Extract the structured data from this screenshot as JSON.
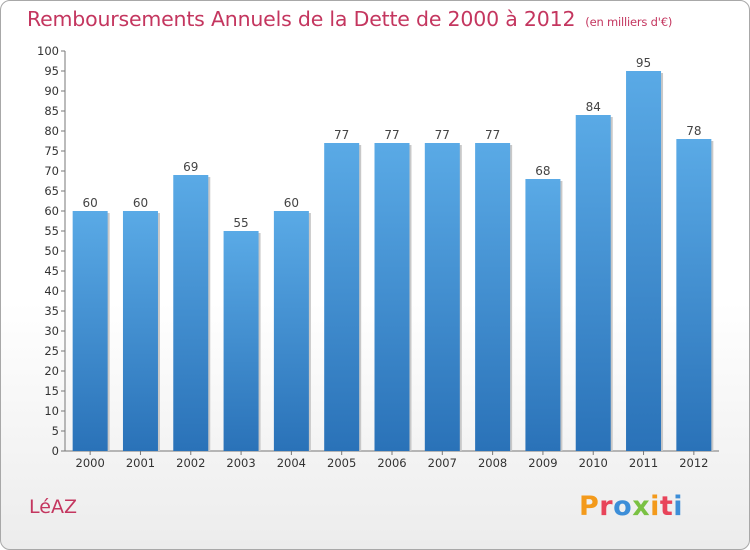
{
  "header": {
    "title": "Remboursements Annuels de la Dette de 2000 à 2012",
    "subtitle": "(en milliers d'€)"
  },
  "footer": {
    "commune": "LéAZ",
    "logo": "Proxiti",
    "logo_colors": [
      "#f39a1b",
      "#e8445a",
      "#3d8ed8",
      "#7ac143",
      "#f39a1b",
      "#e8445a",
      "#3d8ed8"
    ]
  },
  "chart_data": {
    "type": "bar",
    "title": "Remboursements Annuels de la Dette de 2000 à 2012",
    "xlabel": "",
    "ylabel": "",
    "categories": [
      "2000",
      "2001",
      "2002",
      "2003",
      "2004",
      "2005",
      "2006",
      "2007",
      "2008",
      "2009",
      "2010",
      "2011",
      "2012"
    ],
    "values": [
      60,
      60,
      69,
      55,
      60,
      77,
      77,
      77,
      77,
      68,
      84,
      95,
      78
    ],
    "ylim": [
      0,
      100
    ],
    "ytick_step": 5,
    "grid": false,
    "bar_color": "#3c8fd6",
    "bar_color_light": "#5aaae6",
    "bar_color_dark": "#2a72b8"
  }
}
